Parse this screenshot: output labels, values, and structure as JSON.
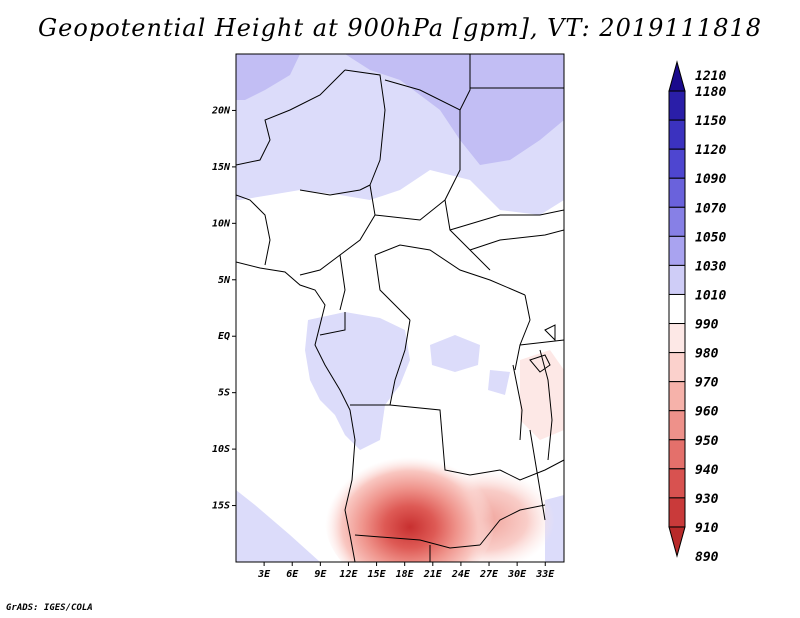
{
  "title": "Geopotential Height at 900hPa [gpm], VT: 2019111818",
  "credit": "GrADS: IGES/COLA",
  "map": {
    "lon_range": [
      0,
      35
    ],
    "lat_range": [
      -20,
      25
    ],
    "lat_ticks": [
      {
        "value": 20,
        "label": "20N"
      },
      {
        "value": 15,
        "label": "15N"
      },
      {
        "value": 10,
        "label": "10N"
      },
      {
        "value": 5,
        "label": "5N"
      },
      {
        "value": 0,
        "label": "EQ"
      },
      {
        "value": -5,
        "label": "5S"
      },
      {
        "value": -10,
        "label": "10S"
      },
      {
        "value": -15,
        "label": "15S"
      }
    ],
    "lon_ticks": [
      {
        "value": 3,
        "label": "3E"
      },
      {
        "value": 6,
        "label": "6E"
      },
      {
        "value": 9,
        "label": "9E"
      },
      {
        "value": 12,
        "label": "12E"
      },
      {
        "value": 15,
        "label": "15E"
      },
      {
        "value": 18,
        "label": "18E"
      },
      {
        "value": 21,
        "label": "21E"
      },
      {
        "value": 24,
        "label": "24E"
      },
      {
        "value": 27,
        "label": "27E"
      },
      {
        "value": 30,
        "label": "30E"
      },
      {
        "value": 33,
        "label": "33E"
      }
    ]
  },
  "colorbar": {
    "levels": [
      1210,
      1180,
      1150,
      1120,
      1090,
      1070,
      1050,
      1030,
      1010,
      990,
      980,
      970,
      960,
      950,
      940,
      930,
      910,
      890
    ],
    "colors": [
      "#1a0a8c",
      "#2a1ea8",
      "#3b32bf",
      "#4e46d0",
      "#6a62dc",
      "#8780e6",
      "#a9a3f0",
      "#cfcdf7",
      "#ffffff",
      "#fde8e6",
      "#fbd1cc",
      "#f6b2aa",
      "#ee918a",
      "#e4706b",
      "#d85250",
      "#c93a3a",
      "#b82a2a"
    ]
  }
}
